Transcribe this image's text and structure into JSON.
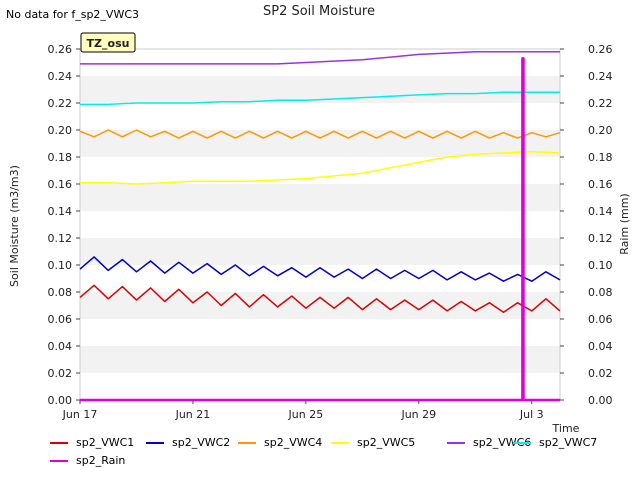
{
  "header": {
    "note": "No data for f_sp2_VWC3"
  },
  "chart_data": {
    "type": "line",
    "title": "SP2 Soil Moisture",
    "badge": "TZ_osu",
    "xlabel": "Time",
    "ylabel": "Soil Moisture (m3/m3)",
    "y2label": "Raim (mm)",
    "ylim": [
      0,
      0.26
    ],
    "y2lim": [
      0,
      0.26
    ],
    "yticks": [
      "0.00",
      "0.02",
      "0.04",
      "0.06",
      "0.08",
      "0.10",
      "0.12",
      "0.14",
      "0.16",
      "0.18",
      "0.20",
      "0.22",
      "0.24",
      "0.26"
    ],
    "y2ticks": [
      "0.00",
      "0.02",
      "0.04",
      "0.06",
      "0.08",
      "0.10",
      "0.12",
      "0.14",
      "0.16",
      "0.18",
      "0.20",
      "0.22",
      "0.24",
      "0.26"
    ],
    "xlim": [
      "2023-06-17",
      "2023-07-04"
    ],
    "xticks": [
      {
        "label": "Jun 17",
        "date": "2023-06-17"
      },
      {
        "label": "Jun 21",
        "date": "2023-06-21"
      },
      {
        "label": "Jun 25",
        "date": "2023-06-25"
      },
      {
        "label": "Jun 29",
        "date": "2023-06-29"
      },
      {
        "label": "Jul 3",
        "date": "2023-07-03"
      }
    ],
    "grid": true,
    "legend_position": "bottom",
    "series": [
      {
        "name": "sp2_VWC1",
        "color": "#dd0000",
        "x": [
          "2023-06-17",
          "2023-06-17T12:00",
          "2023-06-18",
          "2023-06-18T12:00",
          "2023-06-19",
          "2023-06-19T12:00",
          "2023-06-20",
          "2023-06-20T12:00",
          "2023-06-21",
          "2023-06-21T12:00",
          "2023-06-22",
          "2023-06-22T12:00",
          "2023-06-23",
          "2023-06-23T12:00",
          "2023-06-24",
          "2023-06-24T12:00",
          "2023-06-25",
          "2023-06-25T12:00",
          "2023-06-26",
          "2023-06-26T12:00",
          "2023-06-27",
          "2023-06-27T12:00",
          "2023-06-28",
          "2023-06-28T12:00",
          "2023-06-29",
          "2023-06-29T12:00",
          "2023-06-30",
          "2023-06-30T12:00",
          "2023-07-01",
          "2023-07-01T12:00",
          "2023-07-02",
          "2023-07-02T12:00",
          "2023-07-03",
          "2023-07-03T12:00",
          "2023-07-04"
        ],
        "values": [
          0.076,
          0.085,
          0.075,
          0.084,
          0.074,
          0.083,
          0.073,
          0.082,
          0.072,
          0.08,
          0.07,
          0.079,
          0.069,
          0.078,
          0.069,
          0.077,
          0.068,
          0.076,
          0.068,
          0.076,
          0.067,
          0.075,
          0.067,
          0.074,
          0.067,
          0.074,
          0.066,
          0.073,
          0.066,
          0.072,
          0.065,
          0.072,
          0.066,
          0.075,
          0.066
        ]
      },
      {
        "name": "sp2_VWC2",
        "color": "#0000cc",
        "x": [
          "2023-06-17",
          "2023-06-17T12:00",
          "2023-06-18",
          "2023-06-18T12:00",
          "2023-06-19",
          "2023-06-19T12:00",
          "2023-06-20",
          "2023-06-20T12:00",
          "2023-06-21",
          "2023-06-21T12:00",
          "2023-06-22",
          "2023-06-22T12:00",
          "2023-06-23",
          "2023-06-23T12:00",
          "2023-06-24",
          "2023-06-24T12:00",
          "2023-06-25",
          "2023-06-25T12:00",
          "2023-06-26",
          "2023-06-26T12:00",
          "2023-06-27",
          "2023-06-27T12:00",
          "2023-06-28",
          "2023-06-28T12:00",
          "2023-06-29",
          "2023-06-29T12:00",
          "2023-06-30",
          "2023-06-30T12:00",
          "2023-07-01",
          "2023-07-01T12:00",
          "2023-07-02",
          "2023-07-02T12:00",
          "2023-07-03",
          "2023-07-03T12:00",
          "2023-07-04"
        ],
        "values": [
          0.097,
          0.106,
          0.096,
          0.104,
          0.095,
          0.103,
          0.094,
          0.102,
          0.094,
          0.101,
          0.093,
          0.1,
          0.092,
          0.099,
          0.092,
          0.098,
          0.091,
          0.098,
          0.091,
          0.097,
          0.09,
          0.097,
          0.09,
          0.096,
          0.09,
          0.096,
          0.089,
          0.095,
          0.089,
          0.094,
          0.088,
          0.093,
          0.088,
          0.095,
          0.089
        ]
      },
      {
        "name": "sp2_VWC4",
        "color": "#ff9900",
        "x": [
          "2023-06-17",
          "2023-06-17T12:00",
          "2023-06-18",
          "2023-06-18T12:00",
          "2023-06-19",
          "2023-06-19T12:00",
          "2023-06-20",
          "2023-06-20T12:00",
          "2023-06-21",
          "2023-06-21T12:00",
          "2023-06-22",
          "2023-06-22T12:00",
          "2023-06-23",
          "2023-06-23T12:00",
          "2023-06-24",
          "2023-06-24T12:00",
          "2023-06-25",
          "2023-06-25T12:00",
          "2023-06-26",
          "2023-06-26T12:00",
          "2023-06-27",
          "2023-06-27T12:00",
          "2023-06-28",
          "2023-06-28T12:00",
          "2023-06-29",
          "2023-06-29T12:00",
          "2023-06-30",
          "2023-06-30T12:00",
          "2023-07-01",
          "2023-07-01T12:00",
          "2023-07-02",
          "2023-07-02T12:00",
          "2023-07-03",
          "2023-07-03T12:00",
          "2023-07-04"
        ],
        "values": [
          0.199,
          0.195,
          0.2,
          0.195,
          0.2,
          0.195,
          0.199,
          0.194,
          0.199,
          0.194,
          0.199,
          0.194,
          0.199,
          0.194,
          0.199,
          0.194,
          0.199,
          0.194,
          0.199,
          0.194,
          0.199,
          0.194,
          0.199,
          0.194,
          0.199,
          0.194,
          0.199,
          0.194,
          0.199,
          0.194,
          0.198,
          0.194,
          0.198,
          0.195,
          0.198
        ]
      },
      {
        "name": "sp2_VWC5",
        "color": "#ffff00",
        "x": [
          "2023-06-17",
          "2023-06-18",
          "2023-06-19",
          "2023-06-20",
          "2023-06-21",
          "2023-06-22",
          "2023-06-23",
          "2023-06-24",
          "2023-06-25",
          "2023-06-26",
          "2023-06-27",
          "2023-06-28",
          "2023-06-29",
          "2023-06-30",
          "2023-07-01",
          "2023-07-02",
          "2023-07-03",
          "2023-07-04"
        ],
        "values": [
          0.161,
          0.161,
          0.16,
          0.161,
          0.162,
          0.162,
          0.162,
          0.163,
          0.164,
          0.166,
          0.168,
          0.172,
          0.176,
          0.18,
          0.182,
          0.183,
          0.184,
          0.183
        ]
      },
      {
        "name": "sp2_VWC6",
        "color": "#9933dd",
        "x": [
          "2023-06-17",
          "2023-06-18",
          "2023-06-19",
          "2023-06-20",
          "2023-06-21",
          "2023-06-22",
          "2023-06-23",
          "2023-06-24",
          "2023-06-25",
          "2023-06-26",
          "2023-06-27",
          "2023-06-28",
          "2023-06-29",
          "2023-06-30",
          "2023-07-01",
          "2023-07-02",
          "2023-07-03",
          "2023-07-04"
        ],
        "values": [
          0.249,
          0.249,
          0.249,
          0.249,
          0.249,
          0.249,
          0.249,
          0.249,
          0.25,
          0.251,
          0.252,
          0.254,
          0.256,
          0.257,
          0.258,
          0.258,
          0.258,
          0.258
        ]
      },
      {
        "name": "sp2_VWC7",
        "color": "#00eeee",
        "x": [
          "2023-06-17",
          "2023-06-18",
          "2023-06-19",
          "2023-06-20",
          "2023-06-21",
          "2023-06-22",
          "2023-06-23",
          "2023-06-24",
          "2023-06-25",
          "2023-06-26",
          "2023-06-27",
          "2023-06-28",
          "2023-06-29",
          "2023-06-30",
          "2023-07-01",
          "2023-07-02",
          "2023-07-03",
          "2023-07-04"
        ],
        "values": [
          0.219,
          0.219,
          0.22,
          0.22,
          0.22,
          0.221,
          0.221,
          0.222,
          0.222,
          0.223,
          0.224,
          0.225,
          0.226,
          0.227,
          0.227,
          0.228,
          0.228,
          0.228
        ]
      },
      {
        "name": "sp2_Rain",
        "color": "#dd00dd",
        "axis": "right",
        "x": [
          "2023-06-17",
          "2023-07-02T16:00",
          "2023-07-02T16:00",
          "2023-07-02T17:00",
          "2023-07-02T17:00",
          "2023-07-04"
        ],
        "values": [
          0,
          0,
          0.253,
          0.253,
          0,
          0
        ]
      }
    ]
  }
}
